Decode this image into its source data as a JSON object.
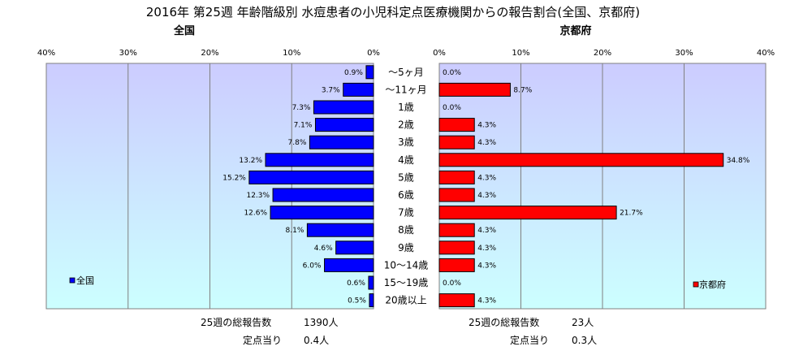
{
  "title": "2016年 第25週 年齢階級別 水痘患者の小児科定点医療機関からの報告割合(全国、京都府)",
  "left_panel_title": "全国",
  "right_panel_title": "京都府",
  "colors": {
    "national_bar": "#0000ff",
    "kyoto_bar": "#ff0000",
    "plot_bg_top": "#ccccff",
    "plot_bg_bottom": "#ccffff"
  },
  "chart_data": [
    {
      "type": "bar",
      "orientation": "horizontal",
      "direction": "right-to-left",
      "title": "全国",
      "categories": [
        "～5ヶ月",
        "～11ヶ月",
        "1歳",
        "2歳",
        "3歳",
        "4歳",
        "5歳",
        "6歳",
        "7歳",
        "8歳",
        "9歳",
        "10～14歳",
        "15～19歳",
        "20歳以上"
      ],
      "series": [
        {
          "name": "全国",
          "values": [
            0.9,
            3.7,
            7.3,
            7.1,
            7.8,
            13.2,
            15.2,
            12.3,
            12.6,
            8.1,
            4.6,
            6.0,
            0.6,
            0.5
          ]
        }
      ],
      "data_labels": [
        "0.9%",
        "3.7%",
        "7.3%",
        "7.1%",
        "7.8%",
        "13.2%",
        "15.2%",
        "12.3%",
        "12.6%",
        "8.1%",
        "4.6%",
        "6.0%",
        "0.6%",
        "0.5%"
      ],
      "xlim": [
        0,
        40
      ],
      "ticks": [
        0,
        10,
        20,
        30,
        40
      ],
      "tick_labels": [
        "0%",
        "10%",
        "20%",
        "30%",
        "40%"
      ],
      "grid": true,
      "legend_position": "bottom-left",
      "summary": {
        "total_label": "25週の総報告数",
        "total_value": "1390人",
        "per_site_label": "定点当り",
        "per_site_value": "0.4人"
      }
    },
    {
      "type": "bar",
      "orientation": "horizontal",
      "direction": "left-to-right",
      "title": "京都府",
      "categories": [
        "～5ヶ月",
        "～11ヶ月",
        "1歳",
        "2歳",
        "3歳",
        "4歳",
        "5歳",
        "6歳",
        "7歳",
        "8歳",
        "9歳",
        "10～14歳",
        "15～19歳",
        "20歳以上"
      ],
      "series": [
        {
          "name": "京都府",
          "values": [
            0.0,
            8.7,
            0.0,
            4.3,
            4.3,
            34.8,
            4.3,
            4.3,
            21.7,
            4.3,
            4.3,
            4.3,
            0.0,
            4.3
          ]
        }
      ],
      "data_labels": [
        "0.0%",
        "8.7%",
        "0.0%",
        "4.3%",
        "4.3%",
        "34.8%",
        "4.3%",
        "4.3%",
        "21.7%",
        "4.3%",
        "4.3%",
        "4.3%",
        "0.0%",
        "4.3%"
      ],
      "xlim": [
        0,
        40
      ],
      "ticks": [
        0,
        10,
        20,
        30,
        40
      ],
      "tick_labels": [
        "0%",
        "10%",
        "20%",
        "30%",
        "40%"
      ],
      "grid": true,
      "legend_position": "bottom-right",
      "summary": {
        "total_label": "25週の総報告数",
        "total_value": "23人",
        "per_site_label": "定点当り",
        "per_site_value": "0.3人"
      }
    }
  ]
}
